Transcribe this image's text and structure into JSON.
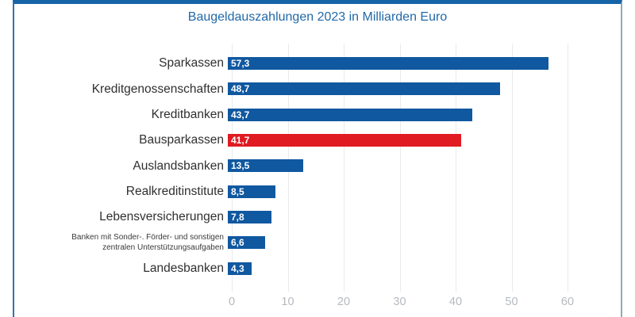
{
  "title": "Baugeldauszahlungen 2023 in Milliarden Euro",
  "colors": {
    "bar": "#1058a0",
    "highlight": "#e01b22",
    "title_text": "#2169a8",
    "frame_top": "#1663a8",
    "frame_left": "#2e74b5",
    "frame_right": "#92a9b7",
    "gridline": "#e9eaeb",
    "tick_text": "#b6babe",
    "label_text": "#303030",
    "value_text": "#ffffff"
  },
  "chart_data": {
    "type": "bar",
    "orientation": "horizontal",
    "title": "Baugeldauszahlungen 2023 in Milliarden Euro",
    "categories": [
      "Sparkassen",
      "Kreditgenossenschaften",
      "Kreditbanken",
      "Bausparkassen",
      "Auslandsbanken",
      "Realkreditinstitute",
      "Lebensversicherungen",
      "Banken mit Sonder-. Förder- und sonstigen\nzentralen Unterstützungsaufgaben",
      "Landesbanken"
    ],
    "values": [
      57.3,
      48.7,
      43.7,
      41.7,
      13.5,
      8.5,
      7.8,
      6.6,
      4.3
    ],
    "value_labels": [
      "57,3",
      "48,7",
      "43,7",
      "41,7",
      "13,5",
      "8,5",
      "7,8",
      "6,6",
      "4,3"
    ],
    "highlighted_index": 3,
    "xlabel": "",
    "ylabel": "",
    "xlim": [
      0,
      60
    ],
    "xticks": [
      0,
      10,
      20,
      30,
      40,
      50,
      60
    ],
    "xtick_labels": [
      "0",
      "10",
      "20",
      "30",
      "40",
      "50",
      "60"
    ],
    "grid": true,
    "legend": false
  }
}
